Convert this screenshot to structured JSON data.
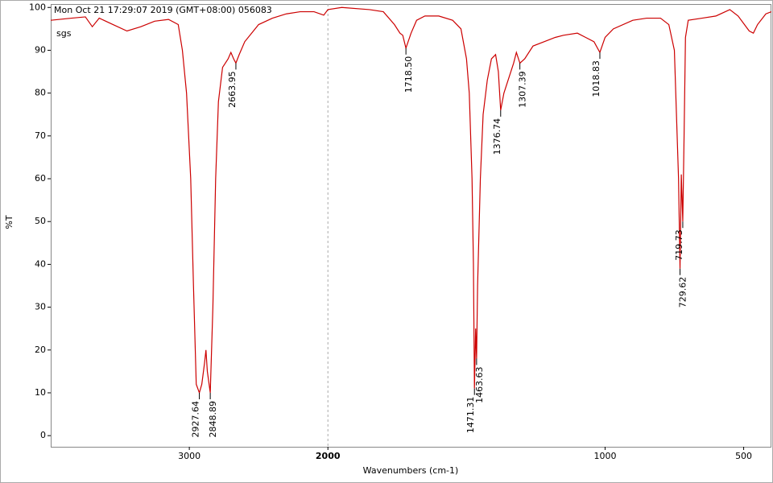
{
  "chart_data": {
    "type": "line",
    "header": "Mon Oct 21 17:29:07 2019 (GMT+08:00)   056083",
    "sample": "sgs",
    "xlabel": "Wavenumbers (cm-1)",
    "ylabel": "%T",
    "xlim": [
      4000,
      400
    ],
    "x_break": 2000,
    "xticks": [
      3000,
      2000,
      1000,
      500
    ],
    "ylim": [
      -2.6,
      100.8
    ],
    "yticks": [
      0,
      10,
      20,
      30,
      40,
      50,
      60,
      70,
      80,
      90,
      100
    ],
    "color": "#cc0000",
    "x": [
      4000,
      3850,
      3750,
      3700,
      3650,
      3550,
      3450,
      3350,
      3250,
      3150,
      3080,
      3050,
      3020,
      2990,
      2970,
      2950,
      2927.64,
      2910,
      2890,
      2880,
      2870,
      2848.89,
      2830,
      2810,
      2790,
      2760,
      2720,
      2700,
      2680,
      2663.95,
      2640,
      2600,
      2550,
      2500,
      2400,
      2300,
      2200,
      2100,
      2030,
      2000,
      1950,
      1850,
      1800,
      1760,
      1740,
      1730,
      1718.5,
      1700,
      1680,
      1650,
      1600,
      1550,
      1520,
      1500,
      1490,
      1480,
      1475,
      1471.31,
      1467,
      1463.63,
      1460,
      1450,
      1440,
      1425,
      1410,
      1395,
      1385,
      1376.74,
      1365,
      1350,
      1330,
      1320,
      1307.39,
      1290,
      1260,
      1220,
      1180,
      1150,
      1100,
      1070,
      1040,
      1018.83,
      1000,
      970,
      900,
      850,
      800,
      770,
      750,
      740,
      735,
      729.62,
      725,
      719.73,
      715,
      710,
      700,
      650,
      600,
      550,
      520,
      480,
      465,
      450,
      420,
      400
    ],
    "values": [
      97,
      97.5,
      97.8,
      95.5,
      97.5,
      96,
      94.5,
      95.5,
      96.8,
      97.2,
      96,
      90,
      80,
      60,
      35,
      12,
      10,
      12,
      17,
      20,
      15,
      10,
      30,
      60,
      78,
      86,
      88,
      89.5,
      88,
      87,
      89,
      92,
      94,
      96,
      97.5,
      98.5,
      99,
      99,
      98.2,
      99.5,
      100,
      99.5,
      99,
      96,
      94,
      93.5,
      90.5,
      94,
      97,
      98,
      98,
      97,
      95,
      88,
      80,
      60,
      40,
      11,
      25,
      18,
      35,
      60,
      75,
      83,
      88,
      89,
      85,
      76,
      80,
      83,
      87,
      89.5,
      87,
      88,
      91,
      92,
      93,
      93.5,
      94,
      93,
      92,
      89.5,
      93,
      95,
      97,
      97.5,
      97.5,
      96,
      90,
      70,
      60,
      39,
      61,
      50,
      70,
      93,
      97,
      97.5,
      98,
      99.5,
      98,
      94.5,
      94,
      96,
      98.5,
      99
    ],
    "annotations": {
      "x": [
        2927.64,
        2848.89,
        2663.95,
        1718.5,
        1471.31,
        1463.63,
        1376.74,
        1307.39,
        1018.83,
        729.62,
        719.73
      ],
      "y": [
        10,
        10,
        87,
        90.5,
        11,
        18,
        76,
        87,
        89.5,
        39,
        50
      ],
      "labels": [
        "2927.64",
        "2848.89",
        "2663.95",
        "1718.50",
        "1471.31",
        "1463.63",
        "1376.74",
        "1307.39",
        "1018.83",
        "729.62",
        "719.73"
      ]
    }
  }
}
